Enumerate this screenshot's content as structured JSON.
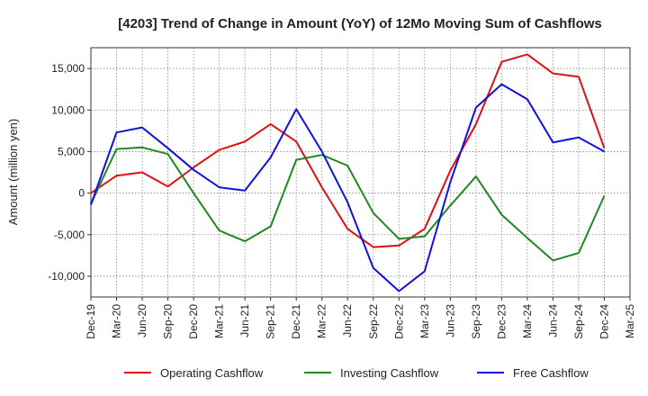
{
  "chart_data": {
    "type": "line",
    "title": "[4203]  Trend of Change in Amount (YoY) of 12Mo Moving Sum of Cashflows",
    "xlabel": "",
    "ylabel": "Amount (million yen)",
    "ylim": [
      -12500,
      17500
    ],
    "yticks": [
      15000,
      10000,
      5000,
      0,
      -5000,
      -10000
    ],
    "ytick_labels": [
      "15,000",
      "10,000",
      "5,000",
      "0",
      "-5,000",
      "-10,000"
    ],
    "grid": true,
    "legend_position": "bottom",
    "categories": [
      "Dec-19",
      "Mar-20",
      "Jun-20",
      "Sep-20",
      "Dec-20",
      "Mar-21",
      "Jun-21",
      "Sep-21",
      "Dec-21",
      "Mar-22",
      "Jun-22",
      "Sep-22",
      "Dec-22",
      "Mar-23",
      "Jun-23",
      "Sep-23",
      "Dec-23",
      "Mar-24",
      "Jun-24",
      "Sep-24",
      "Dec-24",
      "Mar-25"
    ],
    "series": [
      {
        "name": "Operating Cashflow",
        "color": "#dd1111",
        "values": [
          0,
          2100,
          2500,
          800,
          3100,
          5200,
          6200,
          8300,
          6200,
          700,
          -4300,
          -6500,
          -6300,
          -4300,
          2700,
          8300,
          15800,
          16700,
          14400,
          14000,
          5400,
          null
        ]
      },
      {
        "name": "Investing Cashflow",
        "color": "#228822",
        "values": [
          -1300,
          5300,
          5500,
          4700,
          0,
          -4500,
          -5800,
          -4000,
          4000,
          4600,
          3300,
          -2400,
          -5500,
          -5200,
          -1500,
          2000,
          -2600,
          -5400,
          -8100,
          -7200,
          -300,
          null
        ]
      },
      {
        "name": "Free Cashflow",
        "color": "#1111dd",
        "values": [
          -1400,
          7300,
          7900,
          5400,
          2800,
          700,
          300,
          4300,
          10100,
          5000,
          -1100,
          -9000,
          -11800,
          -9400,
          1300,
          10300,
          13100,
          11300,
          6100,
          6700,
          5000,
          null
        ]
      }
    ]
  }
}
